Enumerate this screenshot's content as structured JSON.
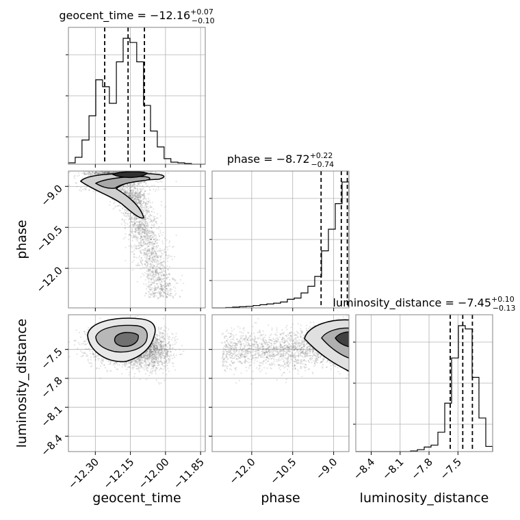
{
  "chart_data": {
    "type": "corner",
    "parameters": [
      "geocent_time",
      "phase",
      "luminosity_distance"
    ],
    "axis_labels": {
      "geocent_time": "geocent_time",
      "phase": "phase",
      "luminosity_distance": "luminosity_distance"
    },
    "ranges": {
      "geocent_time": [
        -12.415,
        -11.83
      ],
      "phase": [
        -13.45,
        -8.44
      ],
      "luminosity_distance": [
        -8.56,
        -7.14
      ]
    },
    "ticks": {
      "geocent_time": [
        -12.3,
        -12.15,
        -12.0,
        -11.85
      ],
      "phase": [
        -12.0,
        -10.5,
        -9.0
      ],
      "luminosity_distance": [
        -8.4,
        -8.1,
        -7.8,
        -7.5
      ]
    },
    "tick_labels": {
      "geocent_time": [
        "−12.30",
        "−12.15",
        "−12.00",
        "−11.85"
      ],
      "phase": [
        "−12.0",
        "−10.5",
        "−9.0"
      ],
      "luminosity_distance": [
        "−8.4",
        "−8.1",
        "−7.8",
        "−7.5"
      ]
    },
    "titles": {
      "geocent_time": {
        "prefix": "geocent_time = ",
        "median": "−12.16",
        "plus": "+0.07",
        "minus": "−0.10"
      },
      "phase": {
        "prefix": "phase = ",
        "median": "−8.72",
        "plus": "+0.22",
        "minus": "−0.74"
      },
      "luminosity_distance": {
        "prefix": "luminosity_distance = ",
        "median": "−7.45",
        "plus": "+0.10",
        "minus": "−0.13"
      }
    },
    "quantiles": {
      "geocent_time": [
        -12.26,
        -12.16,
        -12.09
      ],
      "phase": [
        -9.46,
        -8.72,
        -8.5
      ],
      "luminosity_distance": [
        -7.58,
        -7.45,
        -7.35
      ]
    },
    "histograms": {
      "geocent_time": {
        "edges": [
          -12.415,
          -12.386,
          -12.357,
          -12.327,
          -12.298,
          -12.269,
          -12.24,
          -12.21,
          -12.181,
          -12.152,
          -12.123,
          -12.094,
          -12.064,
          -12.035,
          -12.006,
          -11.977,
          -11.947,
          -11.918,
          -11.889,
          -11.86,
          -11.83
        ],
        "counts": [
          2,
          10,
          35,
          70,
          122,
          112,
          88,
          148,
          182,
          176,
          148,
          85,
          48,
          25,
          8,
          3,
          2,
          1,
          0,
          0
        ]
      },
      "phase": {
        "edges": [
          -13.45,
          -13.2,
          -12.949,
          -12.699,
          -12.448,
          -12.198,
          -11.947,
          -11.697,
          -11.446,
          -11.196,
          -10.945,
          -10.695,
          -10.444,
          -10.194,
          -9.943,
          -9.693,
          -9.442,
          -9.192,
          -8.941,
          -8.691,
          -8.44
        ],
        "counts": [
          0,
          0,
          1,
          2,
          3,
          4,
          6,
          8,
          10,
          12,
          15,
          22,
          25,
          38,
          55,
          80,
          145,
          200,
          265,
          320
        ]
      },
      "luminosity_distance": {
        "edges": [
          -8.56,
          -8.489,
          -8.418,
          -8.347,
          -8.276,
          -8.205,
          -8.134,
          -8.063,
          -7.992,
          -7.921,
          -7.85,
          -7.779,
          -7.708,
          -7.637,
          -7.566,
          -7.495,
          -7.424,
          -7.353,
          -7.282,
          -7.211,
          -7.14
        ],
        "counts": [
          0,
          0,
          0,
          0,
          0,
          0,
          0,
          0,
          1,
          3,
          7,
          10,
          30,
          75,
          145,
          195,
          190,
          115,
          52,
          8
        ]
      }
    },
    "grid": true
  }
}
